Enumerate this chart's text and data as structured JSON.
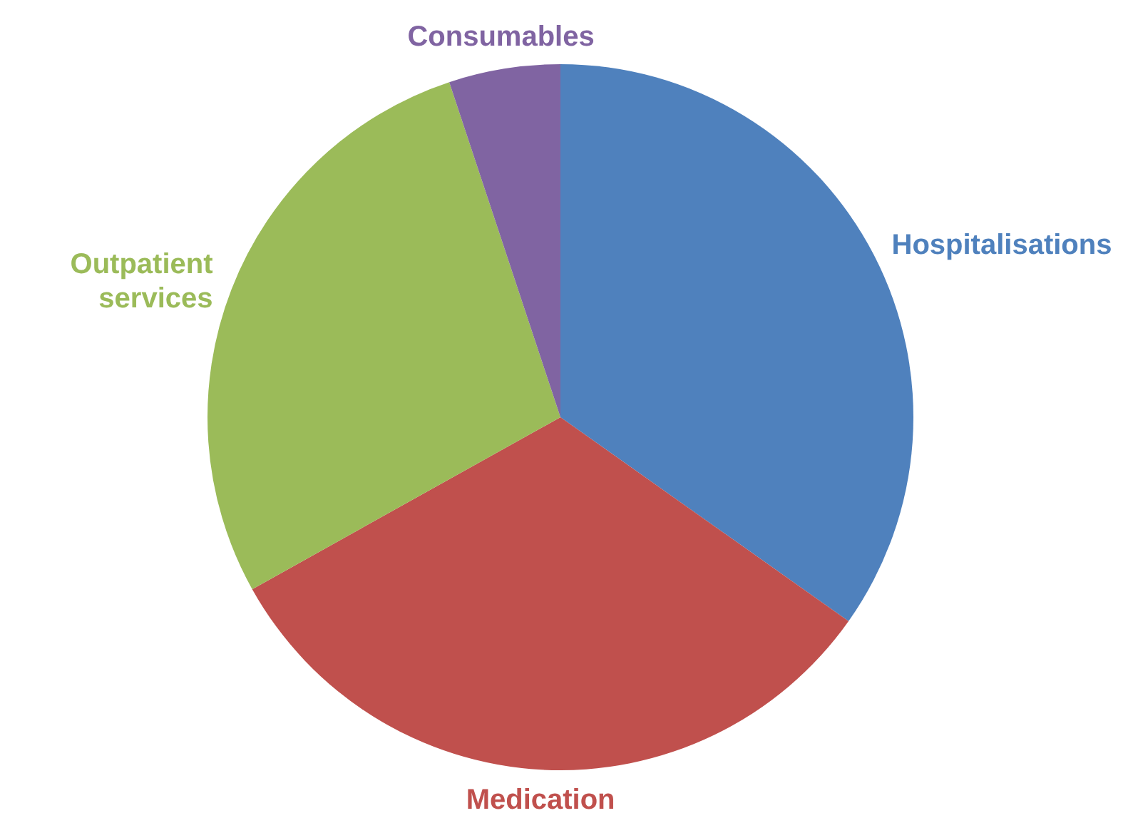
{
  "chart_data": {
    "type": "pie",
    "categories": [
      "Hospitalisations",
      "Medication",
      "Outpatient services",
      "Consumables"
    ],
    "values": [
      34.8,
      32.1,
      28.0,
      5.1
    ],
    "colors": [
      "#4f81bd",
      "#c0504d",
      "#9bbb59",
      "#8064a2"
    ],
    "legend": false
  }
}
